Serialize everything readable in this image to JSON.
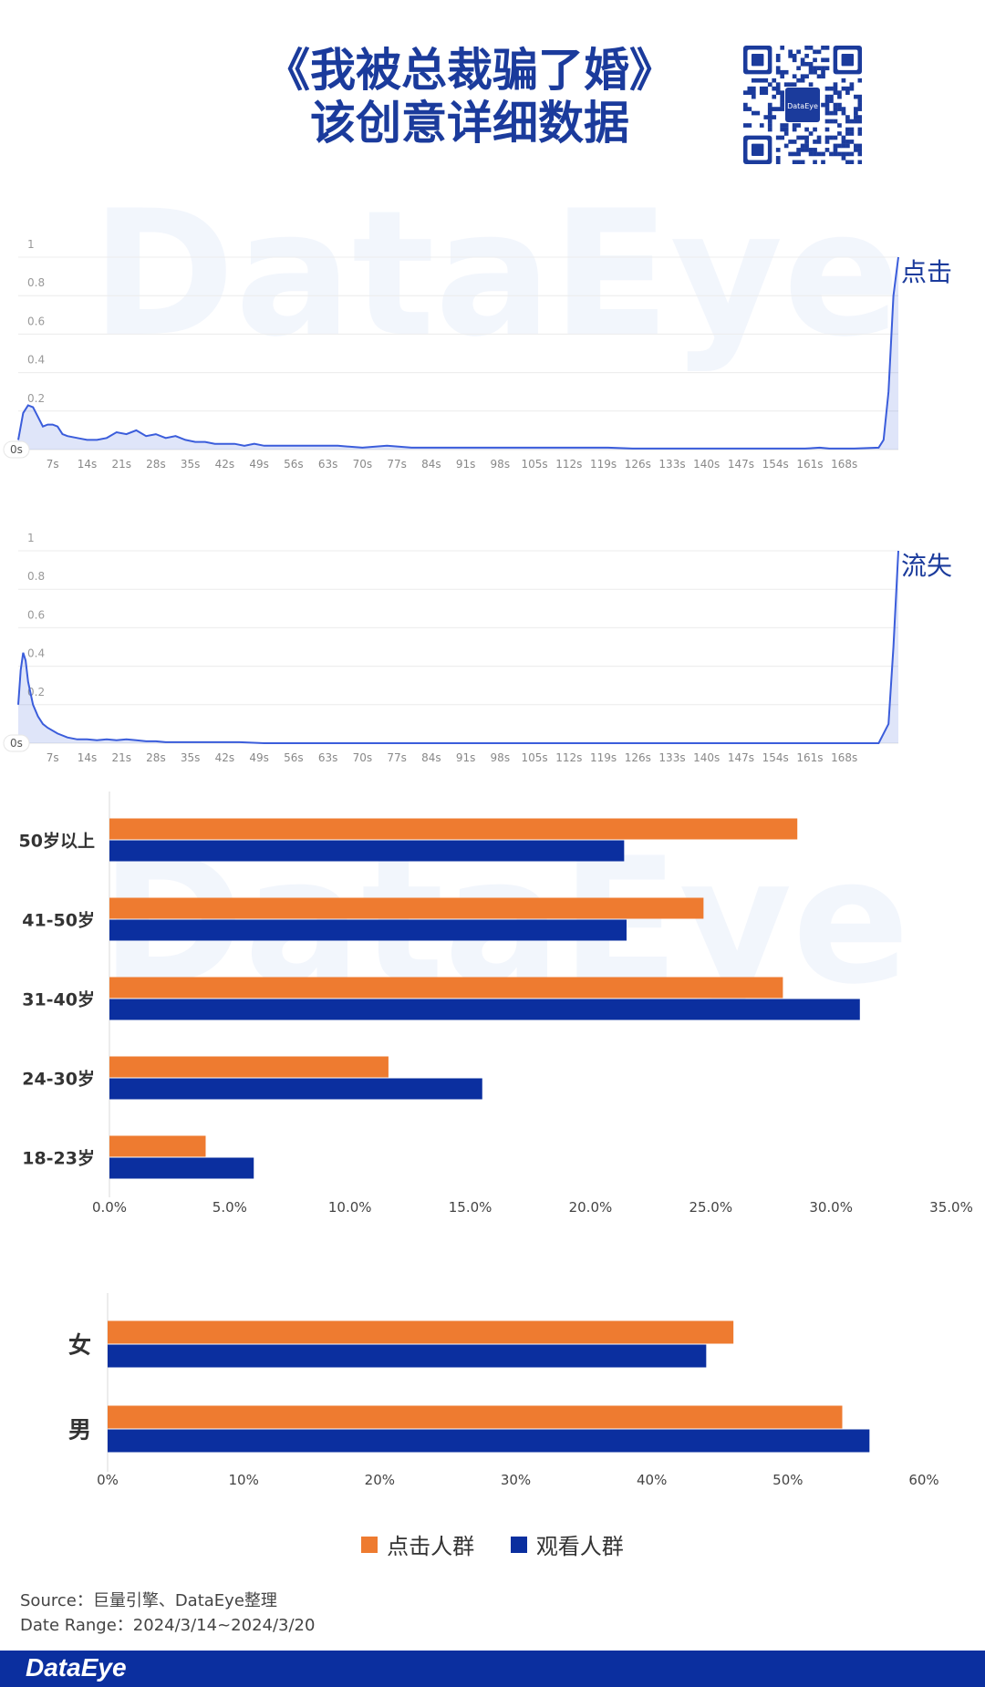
{
  "header": {
    "title_line1": "《我被总裁骗了婚》",
    "title_line2": "该创意详细数据",
    "qr_label": "DataEye"
  },
  "watermark": "DataEye",
  "chart_data": [
    {
      "type": "area",
      "title": "点击",
      "series_label": "点击",
      "start_label": "0s",
      "ylim": [
        0,
        1
      ],
      "yticks": [
        "1",
        "0.8",
        "0.6",
        "0.4",
        "0.2"
      ],
      "xticks": [
        "7s",
        "14s",
        "21s",
        "28s",
        "35s",
        "42s",
        "49s",
        "56s",
        "63s",
        "70s",
        "77s",
        "84s",
        "91s",
        "98s",
        "105s",
        "112s",
        "119s",
        "126s",
        "133s",
        "140s",
        "147s",
        "154s",
        "161s",
        "168s"
      ],
      "xlim": [
        0,
        179
      ],
      "x": [
        0,
        1,
        2,
        3,
        4,
        5,
        6,
        7,
        8,
        9,
        10,
        12,
        14,
        16,
        18,
        20,
        22,
        24,
        26,
        28,
        30,
        32,
        34,
        36,
        38,
        40,
        42,
        44,
        46,
        48,
        50,
        55,
        60,
        65,
        70,
        75,
        80,
        85,
        90,
        95,
        100,
        105,
        110,
        115,
        120,
        125,
        130,
        135,
        140,
        145,
        150,
        155,
        160,
        163,
        165,
        170,
        175,
        176,
        177,
        178,
        179
      ],
      "y": [
        0.05,
        0.19,
        0.23,
        0.22,
        0.17,
        0.12,
        0.13,
        0.13,
        0.12,
        0.08,
        0.07,
        0.06,
        0.05,
        0.05,
        0.06,
        0.09,
        0.08,
        0.1,
        0.07,
        0.08,
        0.06,
        0.07,
        0.05,
        0.04,
        0.04,
        0.03,
        0.03,
        0.03,
        0.02,
        0.03,
        0.02,
        0.02,
        0.02,
        0.02,
        0.01,
        0.02,
        0.01,
        0.01,
        0.01,
        0.01,
        0.01,
        0.01,
        0.01,
        0.01,
        0.01,
        0.005,
        0.005,
        0.005,
        0.005,
        0.005,
        0.005,
        0.005,
        0.005,
        0.01,
        0.005,
        0.005,
        0.01,
        0.05,
        0.3,
        0.8,
        1.0
      ],
      "grid": true,
      "color": "#3b5ddb"
    },
    {
      "type": "area",
      "title": "流失",
      "series_label": "流失",
      "start_label": "0s",
      "ylim": [
        0,
        1
      ],
      "yticks": [
        "1",
        "0.8",
        "0.6",
        "0.4",
        "0.2"
      ],
      "xticks": [
        "7s",
        "14s",
        "21s",
        "28s",
        "35s",
        "42s",
        "49s",
        "56s",
        "63s",
        "70s",
        "77s",
        "84s",
        "91s",
        "98s",
        "105s",
        "112s",
        "119s",
        "126s",
        "133s",
        "140s",
        "147s",
        "154s",
        "161s",
        "168s"
      ],
      "xlim": [
        0,
        179
      ],
      "x": [
        0,
        0.5,
        1,
        1.5,
        2,
        3,
        4,
        5,
        6,
        8,
        10,
        12,
        14,
        16,
        18,
        20,
        22,
        24,
        26,
        28,
        30,
        35,
        40,
        45,
        50,
        60,
        80,
        100,
        120,
        140,
        160,
        175,
        177,
        178,
        179
      ],
      "y": [
        0.2,
        0.38,
        0.47,
        0.43,
        0.32,
        0.2,
        0.14,
        0.1,
        0.08,
        0.05,
        0.03,
        0.02,
        0.02,
        0.015,
        0.02,
        0.015,
        0.02,
        0.015,
        0.01,
        0.01,
        0.005,
        0.005,
        0.005,
        0.005,
        0.0,
        0.0,
        0.0,
        0.0,
        0.0,
        0.0,
        0.0,
        0.0,
        0.1,
        0.5,
        1.0
      ],
      "grid": true,
      "color": "#3b5ddb"
    },
    {
      "type": "bar",
      "orientation": "horizontal",
      "categories": [
        "50岁以上",
        "41-50岁",
        "31-40岁",
        "24-30岁",
        "18-23岁"
      ],
      "series": [
        {
          "name": "点击人群",
          "values": [
            28.6,
            24.7,
            28.0,
            11.6,
            4.0
          ]
        },
        {
          "name": "观看人群",
          "values": [
            21.4,
            21.5,
            31.2,
            15.5,
            6.0
          ]
        }
      ],
      "xlim": [
        0,
        35
      ],
      "xticks": [
        "0.0%",
        "5.0%",
        "10.0%",
        "15.0%",
        "20.0%",
        "25.0%",
        "30.0%",
        "35.0%"
      ]
    },
    {
      "type": "bar",
      "orientation": "horizontal",
      "categories": [
        "女",
        "男"
      ],
      "series": [
        {
          "name": "点击人群",
          "values": [
            46,
            54
          ]
        },
        {
          "name": "观看人群",
          "values": [
            44,
            56
          ]
        }
      ],
      "xlim": [
        0,
        60
      ],
      "xticks": [
        "0%",
        "10%",
        "20%",
        "30%",
        "40%",
        "50%",
        "60%"
      ]
    }
  ],
  "legend": {
    "items": [
      {
        "label": "点击人群",
        "color": "#ee7b30"
      },
      {
        "label": "观看人群",
        "color": "#0b2f9f"
      }
    ]
  },
  "footer": {
    "source": "Source：巨量引擎、DataEye整理",
    "date_range": "Date Range：2024/3/14~2024/3/20",
    "brand": "DataEye"
  }
}
